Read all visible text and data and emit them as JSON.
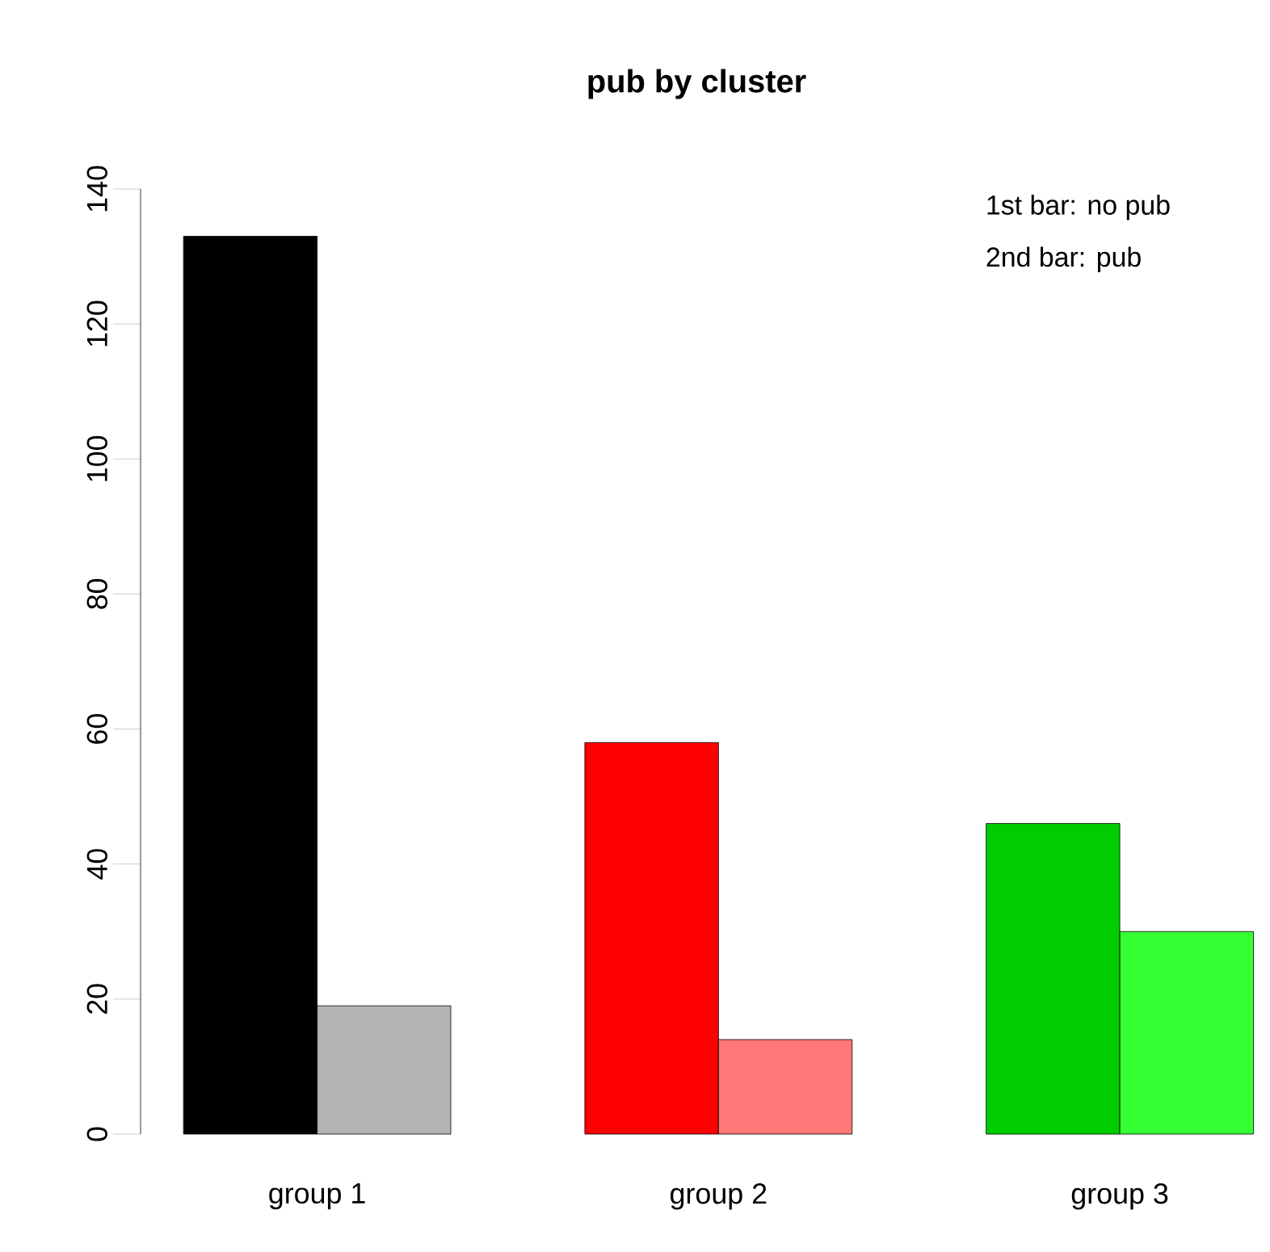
{
  "chart_data": {
    "type": "bar",
    "title": "pub by cluster",
    "categories": [
      "group 1",
      "group 2",
      "group 3"
    ],
    "series": [
      {
        "colors": [
          "#000000",
          "#ff0000",
          "#00cd00"
        ],
        "values": [
          133,
          58,
          46
        ]
      },
      {
        "colors": [
          "#b3b3b3",
          "#ff7777",
          "#33ff33"
        ],
        "values": [
          19,
          14,
          30
        ]
      }
    ],
    "ylim": [
      0,
      140
    ],
    "yticks": [
      0,
      20,
      40,
      60,
      80,
      100,
      120,
      140
    ],
    "grid": false,
    "annotations": [
      "1st bar: no pub",
      "2nd bar: pub"
    ]
  }
}
